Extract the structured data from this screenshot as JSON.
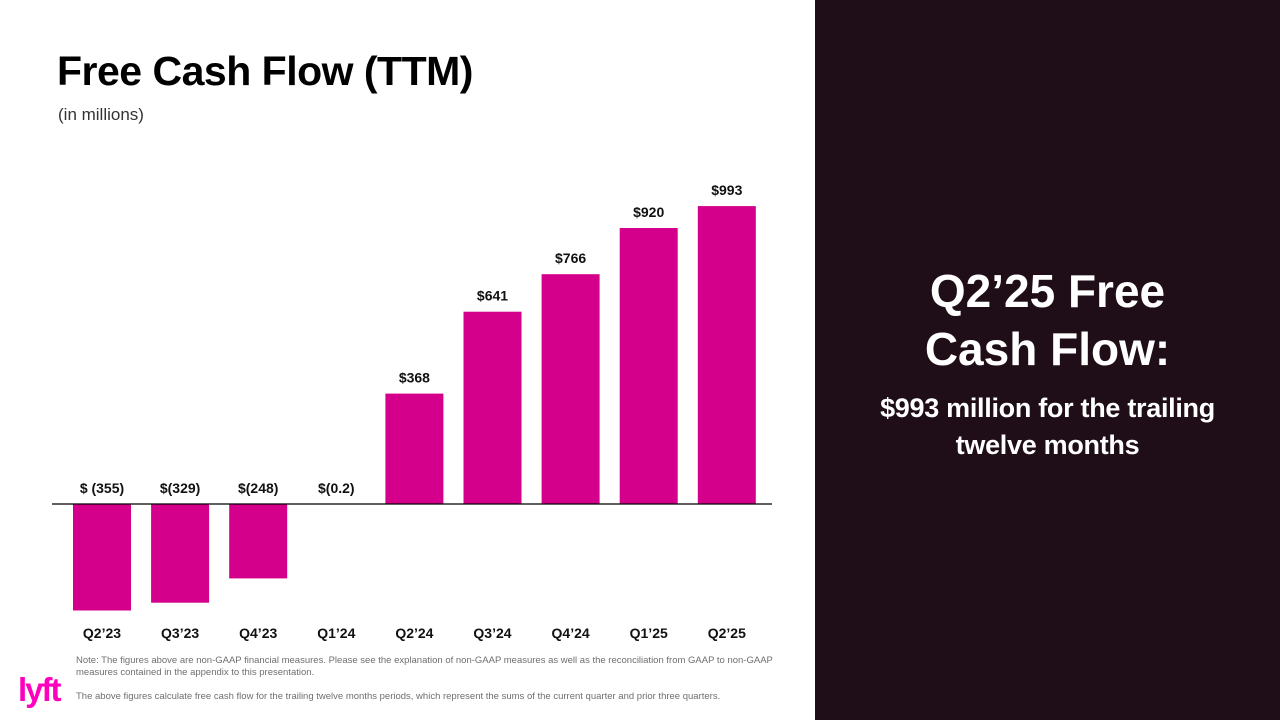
{
  "title": "Free Cash Flow (TTM)",
  "subtitle": "(in millions)",
  "chart_data": {
    "type": "bar",
    "title": "Free Cash Flow (TTM)",
    "subtitle": "(in millions)",
    "categories": [
      "Q2’23",
      "Q3’23",
      "Q4’23",
      "Q1’24",
      "Q2’24",
      "Q3’24",
      "Q4’24",
      "Q1’25",
      "Q2’25"
    ],
    "values": [
      -355,
      -329,
      -248,
      -0.2,
      368,
      641,
      766,
      920,
      993
    ],
    "labels": [
      "$ (355)",
      "$(329)",
      "$(248)",
      "$(0.2)",
      "$368",
      "$641",
      "$766",
      "$920",
      "$993"
    ],
    "xlabel": "",
    "ylabel": "",
    "grid": false,
    "legend": "none",
    "bar_color": "#d4008c",
    "axis_color": "#000000"
  },
  "notes": {
    "note1": "Note: The figures above are non-GAAP financial measures. Please see the explanation of non-GAAP measures as well as the reconciliation from GAAP to non-GAAP measures contained in the appendix to this presentation.",
    "note2": "The above figures calculate free cash flow for the trailing twelve months periods, which represent the sums of the current quarter and prior three quarters."
  },
  "logo": {
    "text": "lyft",
    "color": "#ff00bf"
  },
  "panel": {
    "headline": "Q2’25 Free Cash Flow:",
    "subtext": "$993 million for the trailing twelve months",
    "background": "#1f0e17"
  }
}
